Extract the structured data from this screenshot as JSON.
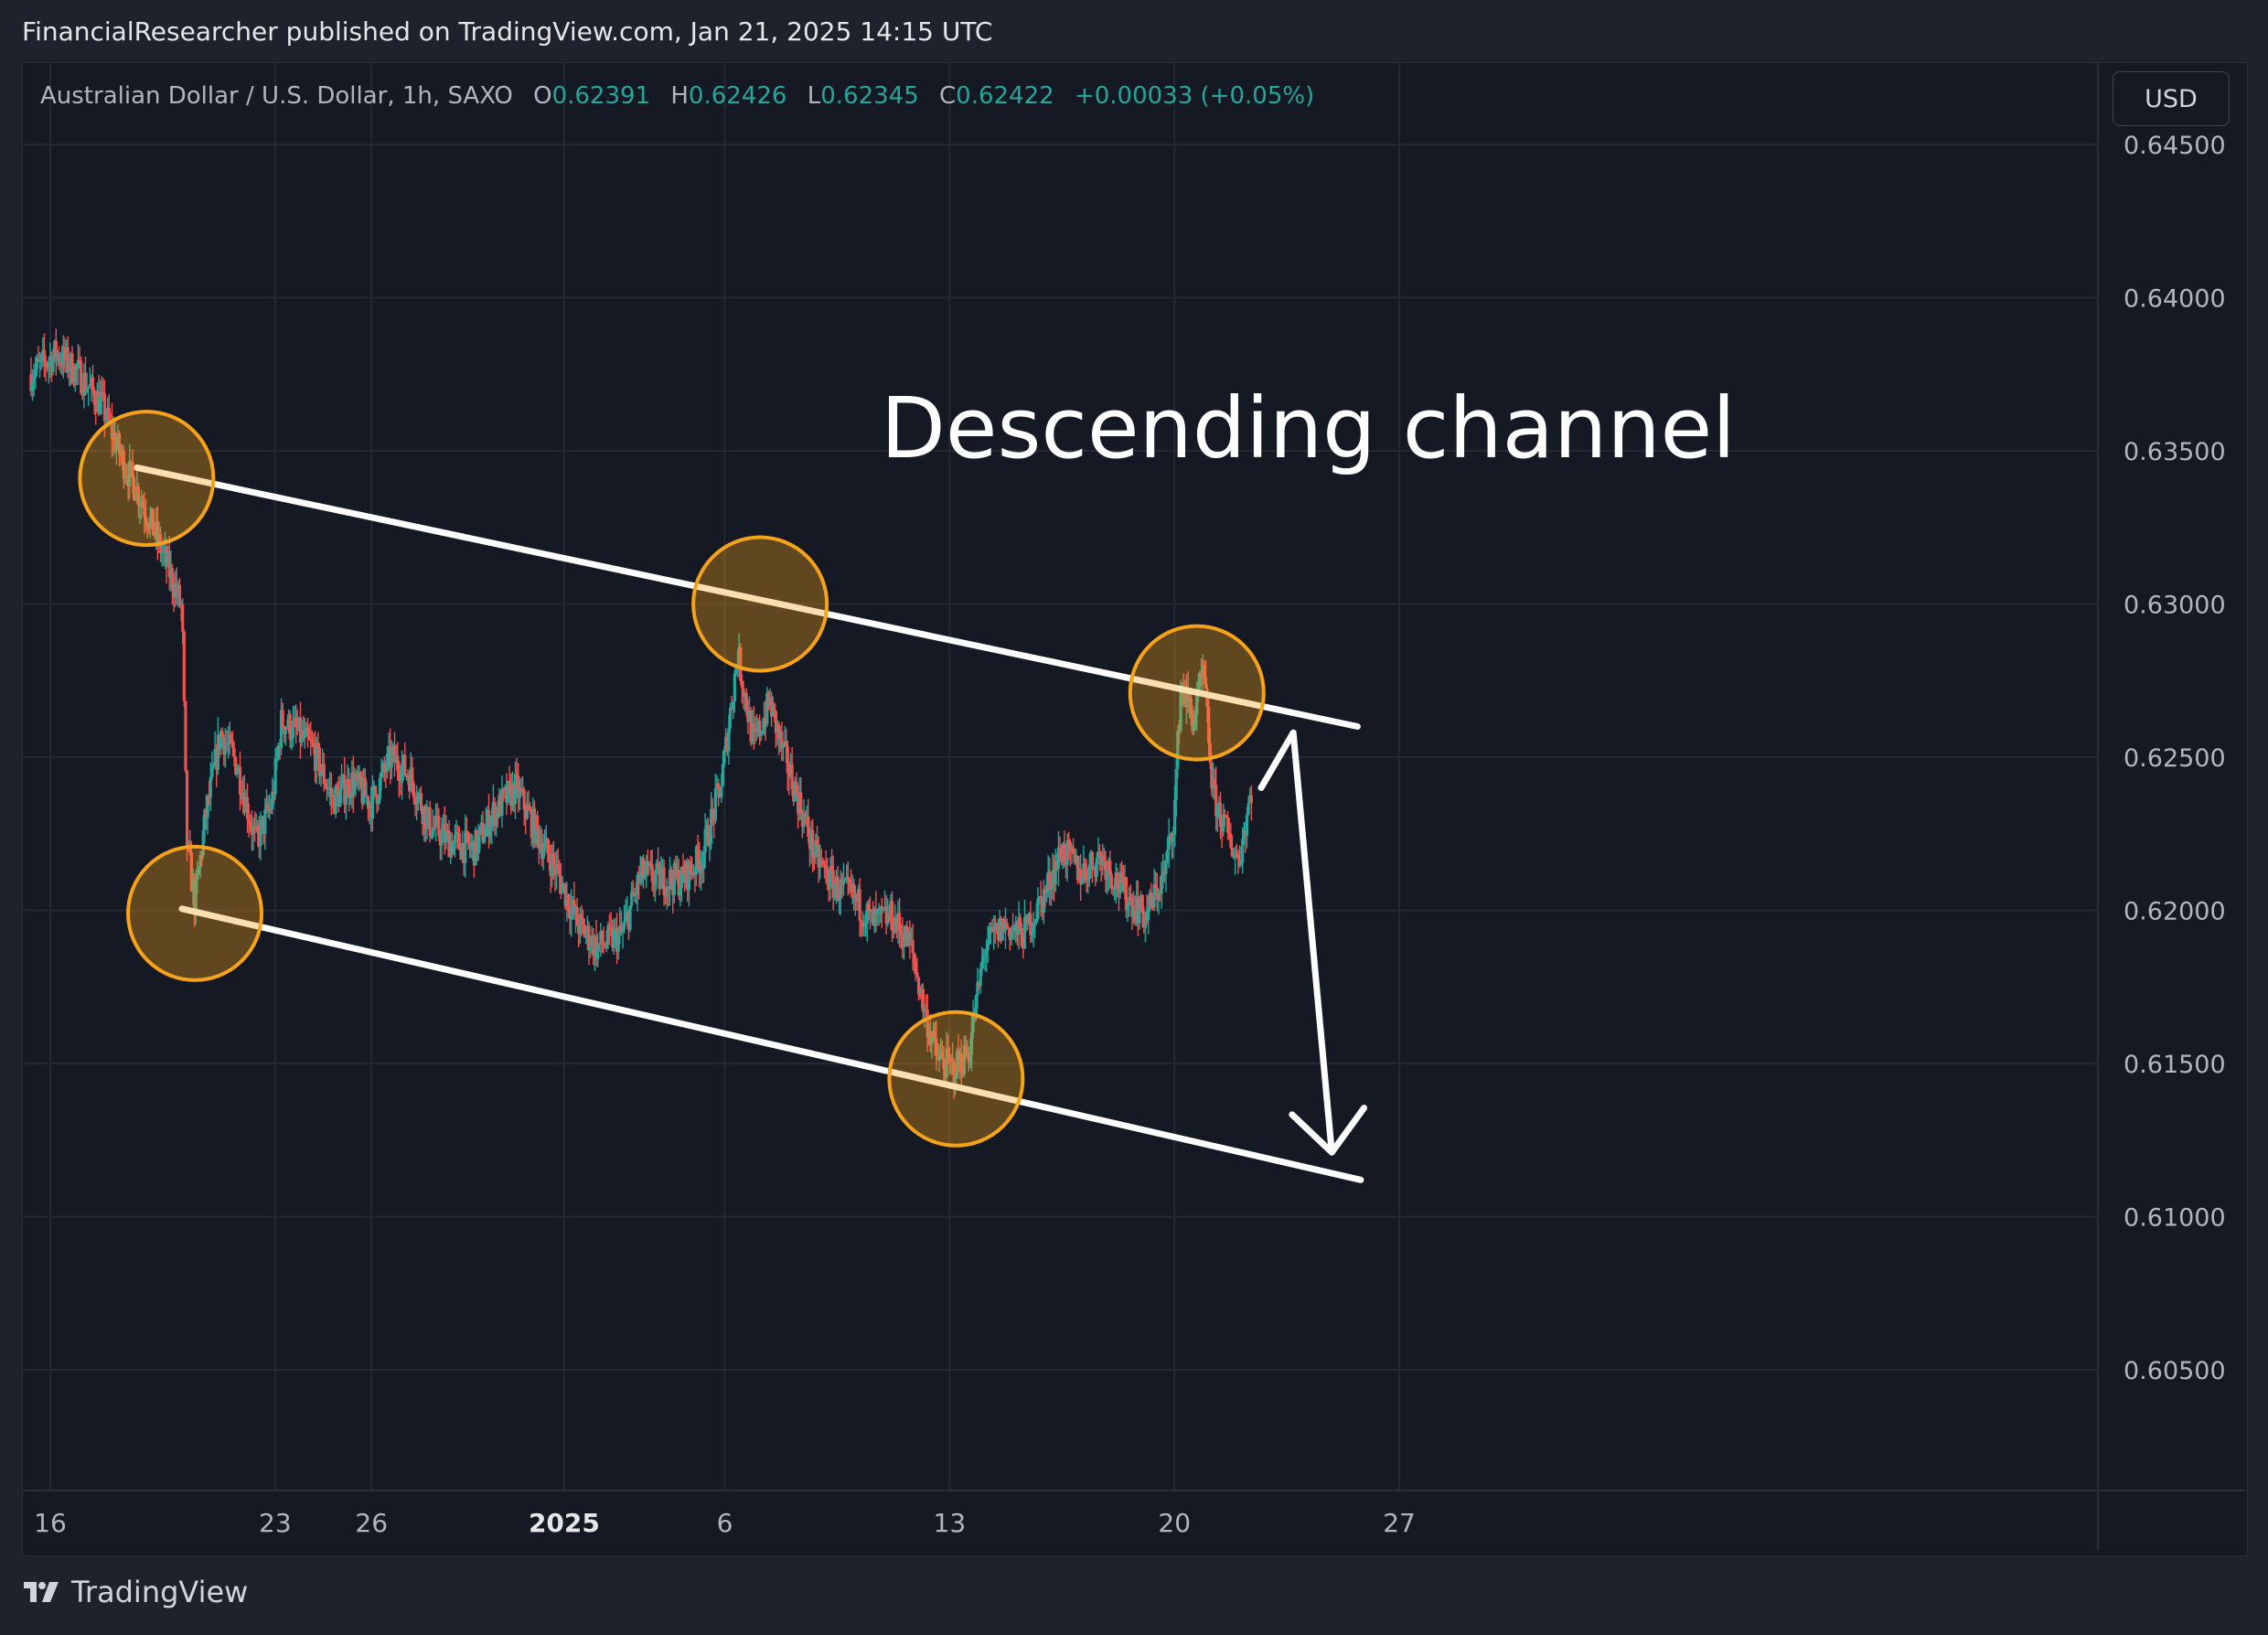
{
  "header": {
    "publisher": "FinancialResearcher published on TradingView.com, Jan 21, 2025 14:15 UTC"
  },
  "legend": {
    "symbol": "Australian Dollar / U.S. Dollar, 1h, SAXO",
    "o_label": "O",
    "o": "0.62391",
    "h_label": "H",
    "h": "0.62426",
    "l_label": "L",
    "l": "0.62345",
    "c_label": "C",
    "c": "0.62422",
    "change": "+0.00033 (+0.05%)"
  },
  "currency_button": "USD",
  "brand": "TradingView",
  "colors": {
    "up": "#26a69a",
    "down": "#ef5350",
    "annotation": "#ffffff",
    "circle": "#f7a21b",
    "background": "#151924"
  },
  "chart_data": {
    "type": "candlestick",
    "title": "",
    "annotation": "Descending channel",
    "ylim": [
      0.6025,
      0.646
    ],
    "y_ticks": [
      "0.64500",
      "0.64000",
      "0.63500",
      "0.63000",
      "0.62500",
      "0.62000",
      "0.61500",
      "0.61000",
      "0.60500"
    ],
    "x_ticks": [
      {
        "label": "16",
        "day": 0
      },
      {
        "label": "23",
        "day": 7
      },
      {
        "label": "26",
        "day": 10
      },
      {
        "label": "2025",
        "day": 16,
        "bold": true
      },
      {
        "label": "6",
        "day": 21
      },
      {
        "label": "13",
        "day": 28
      },
      {
        "label": "20",
        "day": 35
      },
      {
        "label": "27",
        "day": 42
      }
    ],
    "x_range_days": [
      0,
      45.5
    ],
    "price_path": [
      [
        -0.6,
        0.6375
      ],
      [
        0.2,
        0.6382
      ],
      [
        0.9,
        0.6375
      ],
      [
        1.6,
        0.6365
      ],
      [
        2.2,
        0.6348
      ],
      [
        2.8,
        0.6335
      ],
      [
        3.3,
        0.6322
      ],
      [
        3.9,
        0.6305
      ],
      [
        4.1,
        0.6298
      ],
      [
        4.25,
        0.6222
      ],
      [
        4.5,
        0.6202
      ],
      [
        4.8,
        0.6228
      ],
      [
        5.3,
        0.6258
      ],
      [
        5.8,
        0.6248
      ],
      [
        6.4,
        0.6222
      ],
      [
        6.9,
        0.6235
      ],
      [
        7.2,
        0.6262
      ],
      [
        7.7,
        0.6258
      ],
      [
        8.2,
        0.6252
      ],
      [
        8.8,
        0.6236
      ],
      [
        9.4,
        0.6242
      ],
      [
        10.0,
        0.6235
      ],
      [
        10.6,
        0.625
      ],
      [
        11.2,
        0.6244
      ],
      [
        11.8,
        0.6228
      ],
      [
        12.5,
        0.6222
      ],
      [
        13.2,
        0.622
      ],
      [
        13.8,
        0.6232
      ],
      [
        14.5,
        0.624
      ],
      [
        15.2,
        0.6224
      ],
      [
        15.8,
        0.6212
      ],
      [
        16.4,
        0.6196
      ],
      [
        17.0,
        0.6188
      ],
      [
        17.8,
        0.6192
      ],
      [
        18.4,
        0.6212
      ],
      [
        19.0,
        0.621
      ],
      [
        19.7,
        0.621
      ],
      [
        20.3,
        0.6218
      ],
      [
        20.9,
        0.6242
      ],
      [
        21.4,
        0.6284
      ],
      [
        21.9,
        0.6254
      ],
      [
        22.4,
        0.6268
      ],
      [
        22.8,
        0.6252
      ],
      [
        23.3,
        0.6236
      ],
      [
        23.8,
        0.6218
      ],
      [
        24.4,
        0.6208
      ],
      [
        25.0,
        0.6204
      ],
      [
        25.6,
        0.6196
      ],
      [
        26.2,
        0.6198
      ],
      [
        26.8,
        0.6188
      ],
      [
        27.2,
        0.6168
      ],
      [
        27.6,
        0.6152
      ],
      [
        28.1,
        0.6148
      ],
      [
        28.6,
        0.6154
      ],
      [
        29.1,
        0.6188
      ],
      [
        29.7,
        0.6195
      ],
      [
        30.3,
        0.6192
      ],
      [
        30.9,
        0.6204
      ],
      [
        31.5,
        0.622
      ],
      [
        32.1,
        0.6212
      ],
      [
        32.7,
        0.6218
      ],
      [
        33.4,
        0.6206
      ],
      [
        34.1,
        0.6198
      ],
      [
        34.7,
        0.6212
      ],
      [
        35.0,
        0.6232
      ],
      [
        35.2,
        0.6274
      ],
      [
        35.6,
        0.6262
      ],
      [
        35.9,
        0.6278
      ],
      [
        36.2,
        0.6238
      ],
      [
        36.6,
        0.6226
      ],
      [
        37.0,
        0.6216
      ],
      [
        37.4,
        0.624
      ]
    ],
    "channel": {
      "upper": [
        [
          2.7,
          0.63445
        ],
        [
          40.7,
          0.626
        ]
      ],
      "lower": [
        [
          4.1,
          0.62005
        ],
        [
          40.8,
          0.6112
        ]
      ]
    },
    "touch_points": [
      [
        3.0,
        0.6341
      ],
      [
        4.5,
        0.6199
      ],
      [
        22.1,
        0.63
      ],
      [
        28.2,
        0.6145
      ],
      [
        35.7,
        0.6271
      ]
    ],
    "projection_arrow": [
      [
        37.7,
        0.624
      ],
      [
        38.7,
        0.6258
      ],
      [
        39.9,
        0.6121
      ]
    ]
  }
}
